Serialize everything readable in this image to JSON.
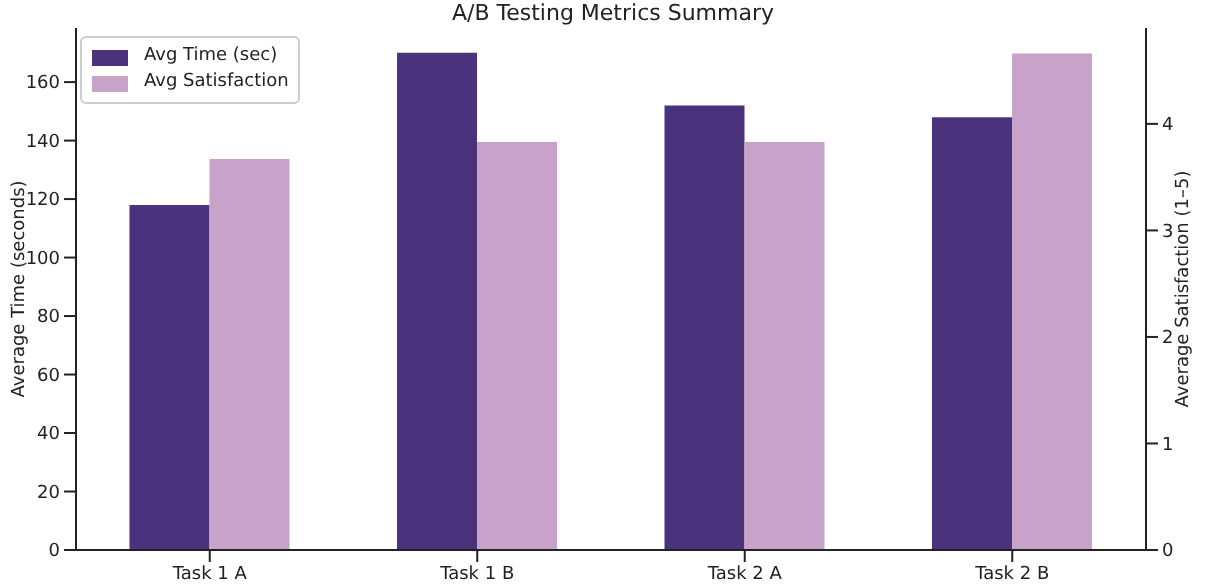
{
  "chart_data": {
    "type": "bar",
    "title": "A/B Testing Metrics Summary",
    "ylabel": "Average Time (seconds)",
    "y2label": "Average Satisfaction (1–5)",
    "categories": [
      "Task 1 A",
      "Task 1 B",
      "Task 2 A",
      "Task 2 B"
    ],
    "series": [
      {
        "name": "Avg Time (sec)",
        "color": "#4b327d",
        "values": [
          118,
          170,
          152,
          148
        ]
      },
      {
        "name": "Avg Satisfaction",
        "color": "#c8a2c8",
        "axis": "y2",
        "values": [
          3.67,
          3.83,
          3.83,
          4.66
        ]
      }
    ],
    "ylim": [
      0,
      178.5
    ],
    "yticks": [
      0,
      20,
      40,
      60,
      80,
      100,
      120,
      140,
      160
    ],
    "y2lim": [
      0,
      4.9
    ],
    "y2ticks": [
      0,
      1,
      2,
      3,
      4
    ],
    "grid": false,
    "legend": "top left"
  }
}
